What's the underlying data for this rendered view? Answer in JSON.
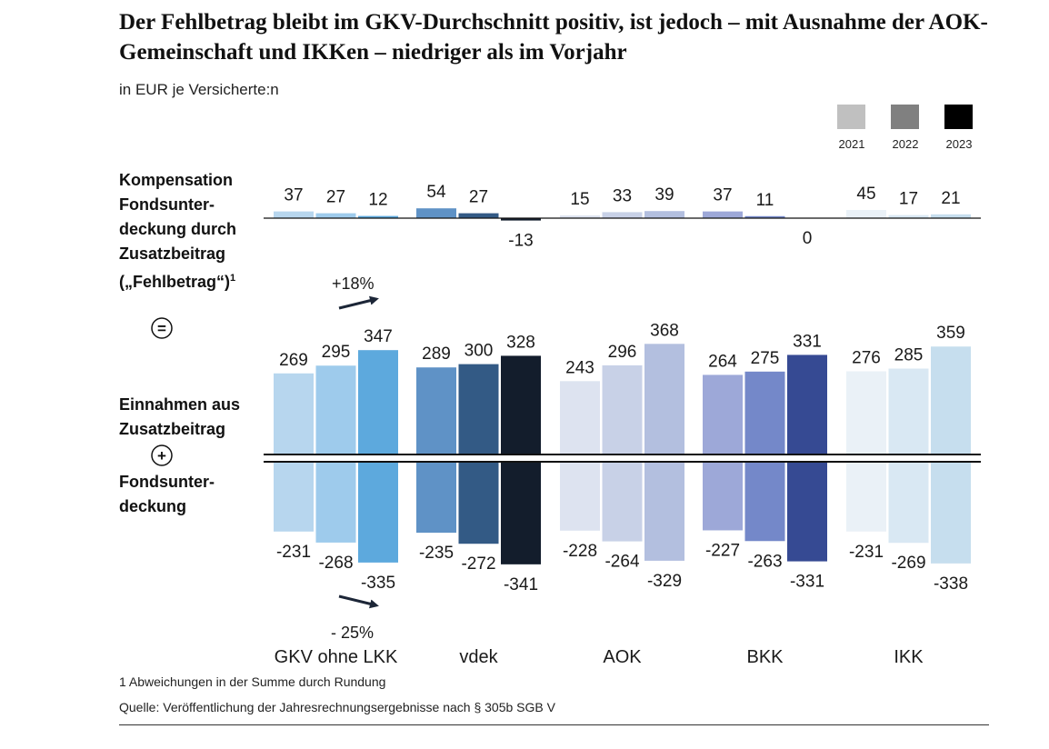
{
  "title": "Der Fehlbetrag bleibt im GKV-Durchschnitt positiv, ist jedoch – mit Ausnahme der AOK-Gemeinschaft und IKKen – niedriger als im Vorjahr",
  "subtitle": "in EUR je Versicherte:n",
  "row_labels": {
    "top": "Kompensation Fondsunter-deckung durch Zusatzbeitrag („Fehlbetrag“)",
    "top_superscript": "1",
    "mid": "Einnahmen aus Zusatzbeitrag",
    "bottom": "Fondsunter-deckung",
    "equals_symbol": "=",
    "plus_symbol": "+"
  },
  "annotations": {
    "top_change": "+18%",
    "bottom_change": "- 25%"
  },
  "footnotes": {
    "note1": "1 Abweichungen in der Summe durch Rundung",
    "source": "Quelle: Veröffentlichung der Jahresrechnungsergebnisse nach § 305b SGB V"
  },
  "chart_data": [
    {
      "type": "bar",
      "name_key": "fehlbetrag",
      "categories": [
        "GKV ohne LKK",
        "vdek",
        "AOK",
        "BKK",
        "IKK"
      ],
      "series": [
        {
          "name": "2021",
          "values": [
            37,
            54,
            15,
            37,
            45
          ]
        },
        {
          "name": "2022",
          "values": [
            27,
            27,
            33,
            11,
            17
          ]
        },
        {
          "name": "2023",
          "values": [
            12,
            -13,
            39,
            0,
            21
          ]
        }
      ]
    },
    {
      "type": "bar",
      "name_key": "einnahmen_zusatzbeitrag",
      "categories": [
        "GKV ohne LKK",
        "vdek",
        "AOK",
        "BKK",
        "IKK"
      ],
      "series": [
        {
          "name": "2021",
          "values": [
            269,
            289,
            243,
            264,
            276
          ]
        },
        {
          "name": "2022",
          "values": [
            295,
            300,
            296,
            275,
            285
          ]
        },
        {
          "name": "2023",
          "values": [
            347,
            328,
            368,
            331,
            359
          ]
        }
      ]
    },
    {
      "type": "bar",
      "name_key": "fondsunterdeckung",
      "categories": [
        "GKV ohne LKK",
        "vdek",
        "AOK",
        "BKK",
        "IKK"
      ],
      "series": [
        {
          "name": "2021",
          "values": [
            -231,
            -235,
            -228,
            -227,
            -231
          ]
        },
        {
          "name": "2022",
          "values": [
            -268,
            -272,
            -264,
            -263,
            -269
          ]
        },
        {
          "name": "2023",
          "values": [
            -335,
            -341,
            -329,
            -331,
            -338
          ]
        }
      ]
    }
  ],
  "legend": {
    "placement": "top-right",
    "items": [
      {
        "label": "2021",
        "color": "#c0c0c0"
      },
      {
        "label": "2022",
        "color": "#808080"
      },
      {
        "label": "2023",
        "color": "#000000"
      }
    ]
  },
  "colors": {
    "GKV ohne LKK": [
      "#b7d6ee",
      "#9ecbec",
      "#5da9dd"
    ],
    "vdek": [
      "#5f92c6",
      "#335a85",
      "#131d2c"
    ],
    "AOK": [
      "#dde3f0",
      "#c8d1e7",
      "#b3bfdf"
    ],
    "BKK": [
      "#9da8d8",
      "#7488c9",
      "#364a93"
    ],
    "IKK": [
      "#eaf1f7",
      "#d9e8f3",
      "#c6deee"
    ]
  }
}
